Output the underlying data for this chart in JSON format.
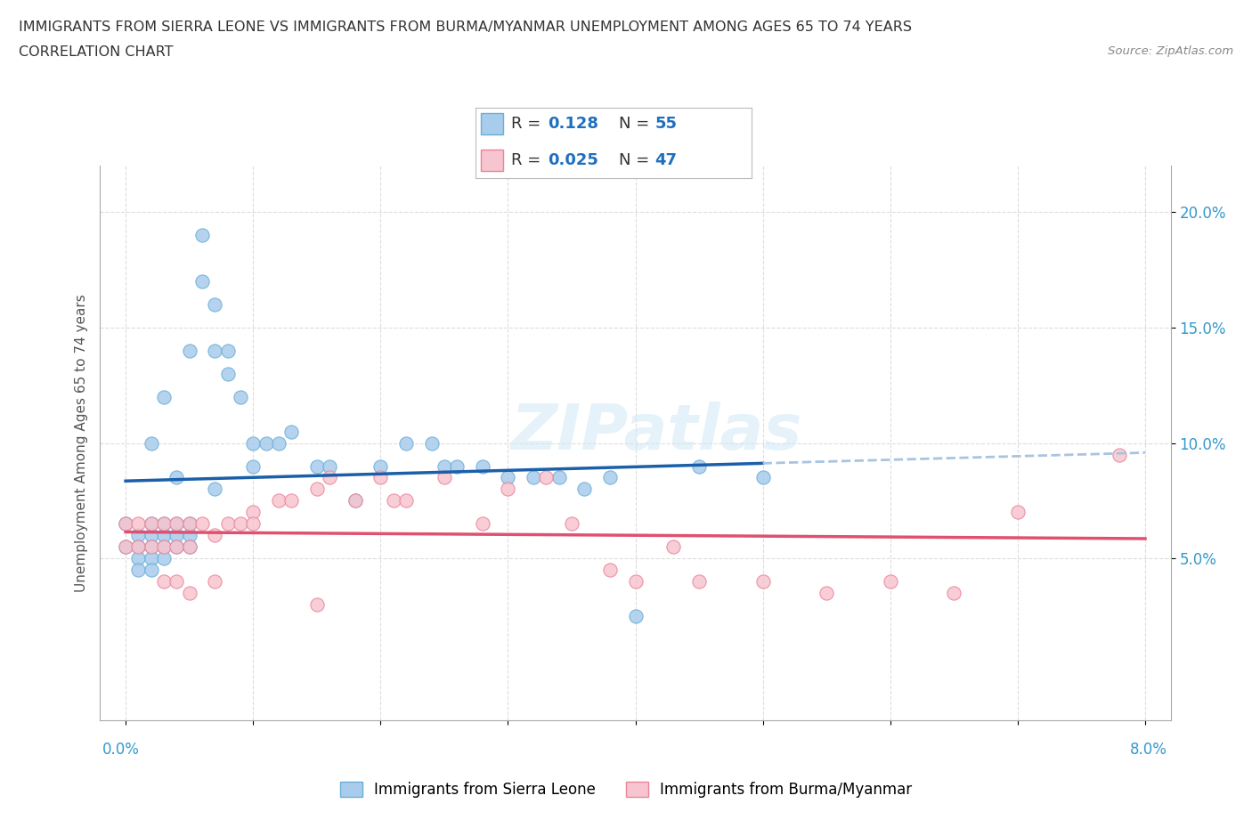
{
  "title_line1": "IMMIGRANTS FROM SIERRA LEONE VS IMMIGRANTS FROM BURMA/MYANMAR UNEMPLOYMENT AMONG AGES 65 TO 74 YEARS",
  "title_line2": "CORRELATION CHART",
  "source_text": "Source: ZipAtlas.com",
  "ylabel": "Unemployment Among Ages 65 to 74 years",
  "xlim": [
    -0.002,
    0.082
  ],
  "ylim": [
    -0.02,
    0.22
  ],
  "sierra_leone_color": "#a8ccec",
  "sierra_leone_edge": "#6aaed6",
  "burma_color": "#f7c5cf",
  "burma_edge": "#e8849a",
  "sl_line_color": "#1a5fa8",
  "bu_line_color": "#e05070",
  "bu_dash_color": "#a8c4e0",
  "legend_R_color": "#1f6fbf",
  "watermark": "ZIPatlas",
  "sierra_leone_x": [
    0.0,
    0.0,
    0.001,
    0.001,
    0.001,
    0.001,
    0.002,
    0.002,
    0.002,
    0.002,
    0.002,
    0.003,
    0.003,
    0.003,
    0.003,
    0.004,
    0.004,
    0.004,
    0.005,
    0.005,
    0.005,
    0.006,
    0.006,
    0.007,
    0.007,
    0.008,
    0.008,
    0.009,
    0.01,
    0.01,
    0.011,
    0.012,
    0.013,
    0.015,
    0.016,
    0.018,
    0.02,
    0.022,
    0.024,
    0.025,
    0.026,
    0.028,
    0.03,
    0.032,
    0.034,
    0.036,
    0.038,
    0.04,
    0.045,
    0.05,
    0.002,
    0.003,
    0.004,
    0.005,
    0.007
  ],
  "sierra_leone_y": [
    0.065,
    0.055,
    0.06,
    0.055,
    0.05,
    0.045,
    0.065,
    0.06,
    0.055,
    0.05,
    0.045,
    0.065,
    0.06,
    0.055,
    0.05,
    0.065,
    0.06,
    0.055,
    0.065,
    0.06,
    0.055,
    0.19,
    0.17,
    0.16,
    0.14,
    0.14,
    0.13,
    0.12,
    0.1,
    0.09,
    0.1,
    0.1,
    0.105,
    0.09,
    0.09,
    0.075,
    0.09,
    0.1,
    0.1,
    0.09,
    0.09,
    0.09,
    0.085,
    0.085,
    0.085,
    0.08,
    0.085,
    0.025,
    0.09,
    0.085,
    0.1,
    0.12,
    0.085,
    0.14,
    0.08
  ],
  "burma_x": [
    0.0,
    0.0,
    0.001,
    0.001,
    0.002,
    0.002,
    0.003,
    0.003,
    0.004,
    0.004,
    0.005,
    0.005,
    0.006,
    0.007,
    0.008,
    0.009,
    0.01,
    0.01,
    0.012,
    0.013,
    0.015,
    0.016,
    0.018,
    0.02,
    0.021,
    0.022,
    0.025,
    0.028,
    0.03,
    0.033,
    0.035,
    0.038,
    0.04,
    0.043,
    0.045,
    0.05,
    0.055,
    0.06,
    0.065,
    0.07,
    0.078,
    0.003,
    0.004,
    0.005,
    0.007,
    0.015
  ],
  "burma_y": [
    0.065,
    0.055,
    0.065,
    0.055,
    0.065,
    0.055,
    0.065,
    0.055,
    0.065,
    0.055,
    0.065,
    0.055,
    0.065,
    0.06,
    0.065,
    0.065,
    0.07,
    0.065,
    0.075,
    0.075,
    0.08,
    0.085,
    0.075,
    0.085,
    0.075,
    0.075,
    0.085,
    0.065,
    0.08,
    0.085,
    0.065,
    0.045,
    0.04,
    0.055,
    0.04,
    0.04,
    0.035,
    0.04,
    0.035,
    0.07,
    0.095,
    0.04,
    0.04,
    0.035,
    0.04,
    0.03
  ],
  "grid_color": "#dddddd",
  "background_color": "#ffffff"
}
